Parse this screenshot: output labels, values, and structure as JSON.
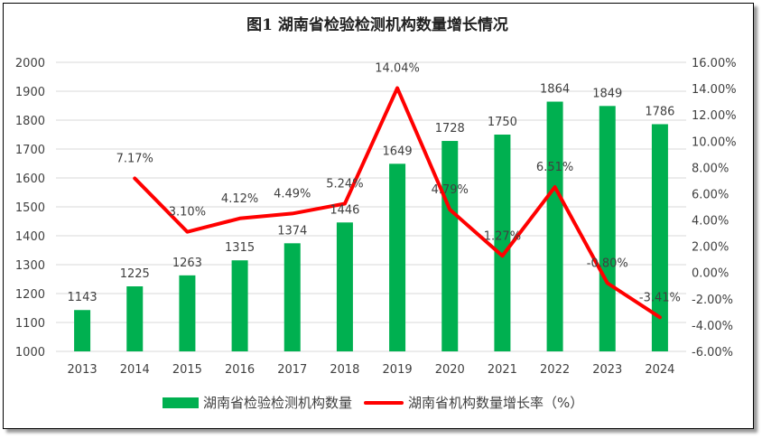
{
  "chart_data": {
    "type": "bar+line",
    "title": "图1 湖南省检验检测机构数量增长情况",
    "categories": [
      "2013",
      "2014",
      "2015",
      "2016",
      "2017",
      "2018",
      "2019",
      "2020",
      "2021",
      "2022",
      "2023",
      "2024"
    ],
    "series": [
      {
        "name": "湖南省检验检测机构数量",
        "type": "bar",
        "axis": "left",
        "color": "#00b050",
        "values": [
          1143,
          1225,
          1263,
          1315,
          1374,
          1446,
          1649,
          1728,
          1750,
          1864,
          1849,
          1786
        ],
        "labels": [
          "1143",
          "1225",
          "1263",
          "1315",
          "1374",
          "1446",
          "1649",
          "1728",
          "1750",
          "1864",
          "1849",
          "1786"
        ]
      },
      {
        "name": "湖南省机构数量增长率（%）",
        "type": "line",
        "axis": "right",
        "color": "#ff0000",
        "values": [
          null,
          7.17,
          3.1,
          4.12,
          4.49,
          5.24,
          14.04,
          4.79,
          1.27,
          6.51,
          -0.8,
          -3.41
        ],
        "labels": [
          "",
          "7.17%",
          "3.10%",
          "4.12%",
          "4.49%",
          "5.24%",
          "14.04%",
          "4.79%",
          "1.27%",
          "6.51%",
          "-0.80%",
          "-3.41%"
        ]
      }
    ],
    "ylim_left": [
      1000,
      2000
    ],
    "yticks_left": [
      "1000",
      "1100",
      "1200",
      "1300",
      "1400",
      "1500",
      "1600",
      "1700",
      "1800",
      "1900",
      "2000"
    ],
    "ylim_right": [
      -6,
      16
    ],
    "yticks_right": [
      "-6.00%",
      "-4.00%",
      "-2.00%",
      "0.00%",
      "2.00%",
      "4.00%",
      "6.00%",
      "8.00%",
      "10.00%",
      "12.00%",
      "14.00%",
      "16.00%"
    ],
    "grid": true,
    "legend_position": "bottom"
  }
}
